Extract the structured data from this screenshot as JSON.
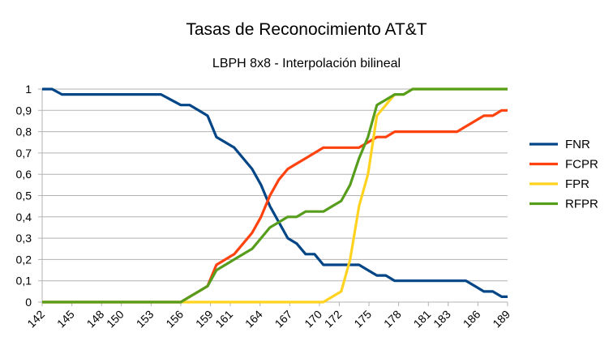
{
  "chart_data": {
    "type": "line",
    "title": "Tasas de Reconocimiento AT&T",
    "subtitle": "LBPH 8x8 - Interpolación bilineal",
    "xlabel": "",
    "ylabel": "",
    "ylim": [
      0,
      1
    ],
    "yticks": [
      "0",
      "0,1",
      "0,2",
      "0,3",
      "0,4",
      "0,5",
      "0,6",
      "0,7",
      "0,8",
      "0,9",
      "1"
    ],
    "xticks": [
      142,
      145,
      148,
      150,
      153,
      156,
      159,
      161,
      164,
      167,
      170,
      172,
      175,
      178,
      181,
      183,
      186,
      189
    ],
    "grid": true,
    "legend_position": "right",
    "x": [
      142.0,
      143.0,
      144.0,
      145.0,
      146.0,
      147.0,
      148.0,
      149.0,
      150.0,
      151.0,
      152.0,
      153.0,
      154.0,
      155.0,
      156.0,
      156.9,
      157.8,
      158.7,
      159.6,
      160.5,
      161.4,
      162.3,
      163.2,
      164.1,
      165.0,
      165.9,
      166.8,
      167.7,
      168.6,
      169.5,
      170.4,
      171.3,
      172.2,
      173.1,
      174.0,
      174.9,
      175.8,
      176.7,
      177.6,
      178.5,
      179.4,
      180.3,
      181.2,
      182.1,
      183.0,
      183.9,
      184.8,
      185.7,
      186.6,
      187.5,
      188.4,
      189.0
    ],
    "series": [
      {
        "name": "FNR",
        "color": "#004586",
        "values": [
          1,
          1,
          0.975,
          0.975,
          0.975,
          0.975,
          0.975,
          0.975,
          0.975,
          0.975,
          0.975,
          0.975,
          0.975,
          0.95,
          0.925,
          0.925,
          0.9,
          0.875,
          0.775,
          0.75,
          0.725,
          0.675,
          0.625,
          0.55,
          0.45,
          0.375,
          0.3,
          0.275,
          0.225,
          0.225,
          0.175,
          0.175,
          0.175,
          0.175,
          0.175,
          0.15,
          0.125,
          0.125,
          0.1,
          0.1,
          0.1,
          0.1,
          0.1,
          0.1,
          0.1,
          0.1,
          0.1,
          0.075,
          0.05,
          0.05,
          0.025,
          0.025
        ]
      },
      {
        "name": "FCPR",
        "color": "#ff420e",
        "values": [
          0,
          0,
          0,
          0,
          0,
          0,
          0,
          0,
          0,
          0,
          0,
          0,
          0,
          0,
          0,
          0.025,
          0.05,
          0.075,
          0.175,
          0.2,
          0.225,
          0.275,
          0.325,
          0.4,
          0.5,
          0.575,
          0.625,
          0.65,
          0.675,
          0.7,
          0.725,
          0.725,
          0.725,
          0.725,
          0.725,
          0.75,
          0.775,
          0.775,
          0.8,
          0.8,
          0.8,
          0.8,
          0.8,
          0.8,
          0.8,
          0.8,
          0.825,
          0.85,
          0.875,
          0.875,
          0.9,
          0.9
        ]
      },
      {
        "name": "FPR",
        "color": "#ffd320",
        "values": [
          0,
          0,
          0,
          0,
          0,
          0,
          0,
          0,
          0,
          0,
          0,
          0,
          0,
          0,
          0,
          0,
          0,
          0,
          0,
          0,
          0,
          0,
          0,
          0,
          0,
          0,
          0,
          0,
          0,
          0,
          0,
          0.025,
          0.05,
          0.2,
          0.45,
          0.6,
          0.875,
          0.925,
          0.975,
          0.975,
          1,
          1,
          1,
          1,
          1,
          1,
          1,
          1,
          1,
          1,
          1,
          1
        ]
      },
      {
        "name": "RFPR",
        "color": "#579d1c",
        "values": [
          0,
          0,
          0,
          0,
          0,
          0,
          0,
          0,
          0,
          0,
          0,
          0,
          0,
          0,
          0,
          0.025,
          0.05,
          0.075,
          0.15,
          0.175,
          0.2,
          0.225,
          0.25,
          0.3,
          0.35,
          0.375,
          0.4,
          0.4,
          0.425,
          0.425,
          0.425,
          0.45,
          0.475,
          0.55,
          0.675,
          0.775,
          0.925,
          0.95,
          0.975,
          0.975,
          1,
          1,
          1,
          1,
          1,
          1,
          1,
          1,
          1,
          1,
          1,
          1
        ]
      }
    ]
  }
}
